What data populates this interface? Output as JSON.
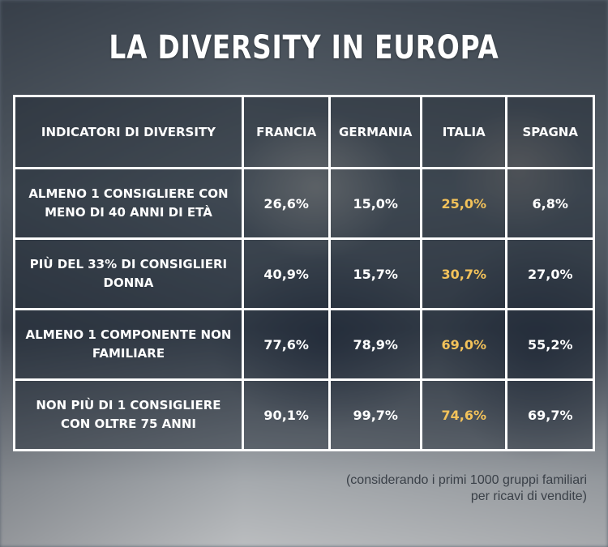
{
  "title": "LA DIVERSITY IN EUROPA",
  "table": {
    "headers": [
      "INDICATORI DI DIVERSITY",
      "FRANCIA",
      "GERMANIA",
      "ITALIA",
      "SPAGNA"
    ],
    "rows": [
      {
        "label": "ALMENO 1 CONSIGLIERE CON MENO DI 40 ANNI DI ETÀ",
        "values": [
          "26,6%",
          "15,0%",
          "25,0%",
          "6,8%"
        ]
      },
      {
        "label": "PIÙ DEL 33% DI CONSIGLIERI DONNA",
        "values": [
          "40,9%",
          "15,7%",
          "30,7%",
          "27,0%"
        ]
      },
      {
        "label": "ALMENO 1 COMPONENTE NON FAMILIARE",
        "values": [
          "77,6%",
          "78,9%",
          "69,0%",
          "55,2%"
        ]
      },
      {
        "label": "NON PIÙ DI 1 CONSIGLIERE CON OLTRE 75 ANNI",
        "values": [
          "90,1%",
          "99,7%",
          "74,6%",
          "69,7%"
        ]
      }
    ],
    "highlight_column": "ITALIA",
    "highlight_color": "#f3c25a",
    "text_color": "#ffffff"
  },
  "note": {
    "line1": "(considerando i primi 1000 gruppi familiari",
    "line2": "per ricavi di vendite)"
  }
}
